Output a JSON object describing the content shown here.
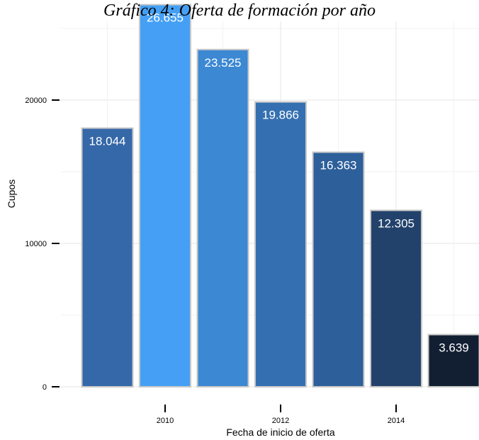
{
  "chart_data": {
    "type": "bar",
    "title": "Gráfico 4: Oferta de formación por año",
    "xlabel": "Fecha de inicio de oferta",
    "ylabel": "Cupos",
    "x": [
      2009,
      2010,
      2011,
      2012,
      2013,
      2014,
      2015
    ],
    "values": [
      18044,
      26655,
      23525,
      19866,
      16363,
      12305,
      3639
    ],
    "value_labels": [
      "18.044",
      "26.655",
      "23.525",
      "19.866",
      "16.363",
      "12.305",
      "3.639"
    ],
    "bar_colors": [
      "#3568A8",
      "#45A0F5",
      "#3C88D3",
      "#3470B1",
      "#2D5F9A",
      "#22426B",
      "#121F33"
    ],
    "x_ticks": [
      2010,
      2012,
      2014
    ],
    "x_tick_labels": [
      "2010",
      "2012",
      "2014"
    ],
    "y_ticks": [
      0,
      10000,
      20000
    ],
    "y_tick_labels": [
      "0",
      "10000",
      "20000"
    ],
    "ylim": [
      0,
      27000
    ],
    "xlim": [
      2008.5,
      2015.5
    ],
    "grid": true,
    "legend": "none"
  }
}
